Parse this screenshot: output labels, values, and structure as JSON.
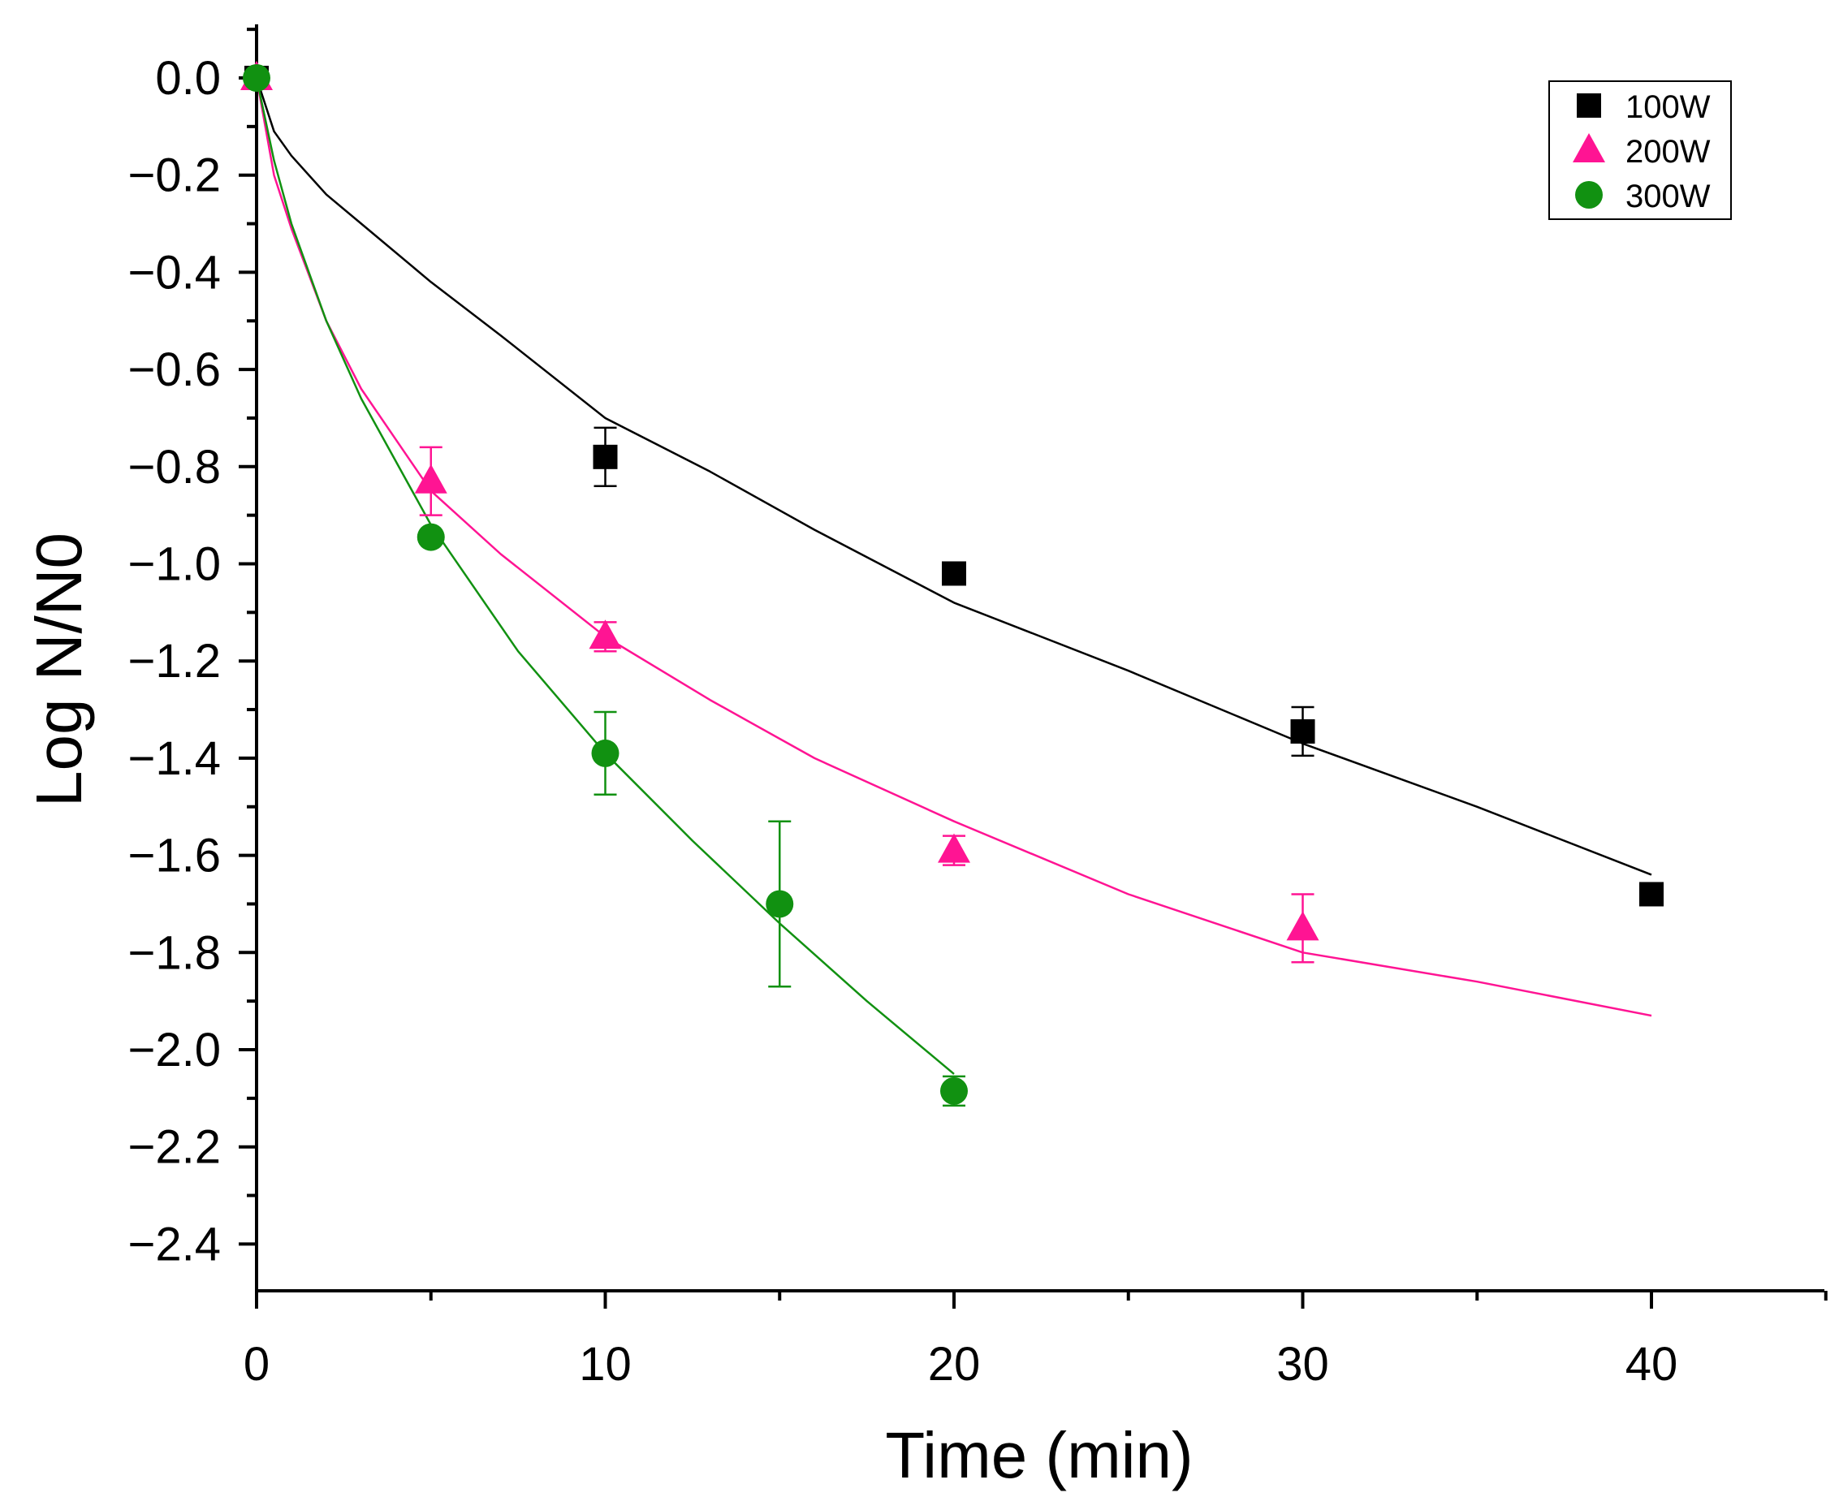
{
  "chart_data": {
    "type": "scatter",
    "title": "",
    "xlabel": "Time (min)",
    "ylabel": "Log N/N0",
    "xlim": [
      0,
      45
    ],
    "ylim": [
      -2.5,
      0.1
    ],
    "x_ticks": [
      0,
      10,
      20,
      30,
      40
    ],
    "x_tick_labels": [
      "0",
      "10",
      "20",
      "30",
      "40"
    ],
    "y_ticks": [
      0.0,
      -0.2,
      -0.4,
      -0.6,
      -0.8,
      -1.0,
      -1.2,
      -1.4,
      -1.6,
      -1.8,
      -2.0,
      -2.2,
      -2.4
    ],
    "y_tick_labels": [
      "0.0",
      "−0.2",
      "−0.4",
      "−0.6",
      "−0.8",
      "−1.0",
      "−1.2",
      "−1.4",
      "−1.6",
      "−1.8",
      "−2.0",
      "−2.2",
      "−2.4"
    ],
    "grid": false,
    "legend_position": "top-right",
    "series": [
      {
        "name": "100W",
        "marker": "square",
        "color": "#000000",
        "x": [
          0,
          10,
          20,
          30,
          40
        ],
        "y": [
          0.0,
          -0.78,
          -1.02,
          -1.345,
          -1.68
        ],
        "err": [
          0,
          0.06,
          0,
          0.05,
          0
        ],
        "fit_x": [
          0,
          0.5,
          1,
          2,
          3,
          5,
          7,
          10,
          13,
          16,
          20,
          25,
          30,
          35,
          40
        ],
        "fit_y": [
          0,
          -0.11,
          -0.16,
          -0.24,
          -0.3,
          -0.42,
          -0.53,
          -0.7,
          -0.81,
          -0.93,
          -1.08,
          -1.22,
          -1.37,
          -1.5,
          -1.64
        ]
      },
      {
        "name": "200W",
        "marker": "triangle",
        "color": "#ff1493",
        "x": [
          0,
          5,
          10,
          20,
          30
        ],
        "y": [
          0.0,
          -0.83,
          -1.15,
          -1.59,
          -1.75
        ],
        "err": [
          0,
          0.07,
          0.03,
          0.03,
          0.07
        ],
        "fit_x": [
          0,
          0.5,
          1,
          2,
          3,
          5,
          7,
          10,
          13,
          16,
          20,
          25,
          30,
          35,
          40
        ],
        "fit_y": [
          0,
          -0.2,
          -0.31,
          -0.5,
          -0.64,
          -0.85,
          -0.98,
          -1.15,
          -1.28,
          -1.4,
          -1.53,
          -1.68,
          -1.8,
          -1.86,
          -1.93
        ]
      },
      {
        "name": "300W",
        "marker": "circle",
        "color": "#119111",
        "x": [
          0,
          5,
          10,
          15,
          20
        ],
        "y": [
          0.0,
          -0.945,
          -1.39,
          -1.7,
          -2.085
        ],
        "err": [
          0,
          0,
          0.085,
          0.17,
          0.03
        ],
        "fit_x": [
          0,
          0.5,
          1,
          2,
          3,
          5,
          7.5,
          10,
          12.5,
          15,
          17.5,
          20
        ],
        "fit_y": [
          0,
          -0.17,
          -0.3,
          -0.5,
          -0.66,
          -0.92,
          -1.18,
          -1.39,
          -1.57,
          -1.74,
          -1.9,
          -2.05
        ]
      }
    ]
  }
}
